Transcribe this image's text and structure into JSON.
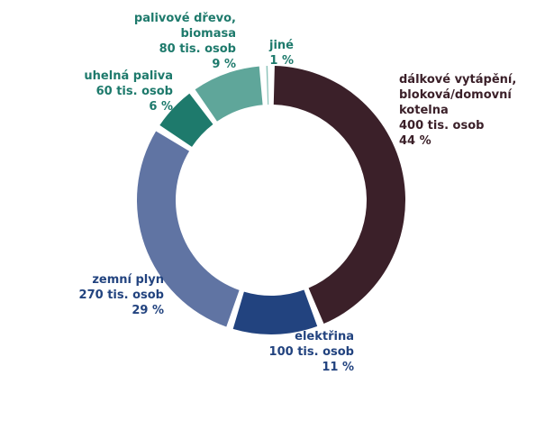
{
  "chart_data": {
    "type": "pie",
    "style": "donut",
    "categories": [
      "dálkové vytápění, bloková/domovní kotelna",
      "elektřina",
      "zemní plyn",
      "uhelná paliva",
      "palivové dřevo, biomasa",
      "jiné"
    ],
    "values": [
      44,
      11,
      29,
      6,
      9,
      1
    ],
    "counts": [
      "400 tis. osob",
      "100 tis. osob",
      "270 tis. osob",
      "60 tis. osob",
      "80 tis. osob",
      ""
    ],
    "colors": [
      "#3b2029",
      "#22437f",
      "#6074a3",
      "#1e7a6c",
      "#5fa69a",
      "#8ec4bb"
    ],
    "labels": [
      {
        "lines": [
          "dálkové vytápění,",
          "bloková/domovní",
          "kotelna",
          "400 tis. osob",
          "44 %"
        ],
        "color": "#3b2029"
      },
      {
        "lines": [
          "elektřina",
          "100 tis. osob",
          "11 %"
        ],
        "color": "#22437f"
      },
      {
        "lines": [
          "zemní plyn",
          "270 tis. osob",
          "29 %"
        ],
        "color": "#22437f"
      },
      {
        "lines": [
          "uhelná paliva",
          "60 tis. osob",
          "6 %"
        ],
        "color": "#1e7a6c"
      },
      {
        "lines": [
          "palivové dřevo,",
          "biomasa",
          "80 tis. osob",
          "9 %"
        ],
        "color": "#1e7a6c"
      },
      {
        "lines": [
          "jiné",
          "1 %"
        ],
        "color": "#1e7a6c"
      }
    ]
  }
}
